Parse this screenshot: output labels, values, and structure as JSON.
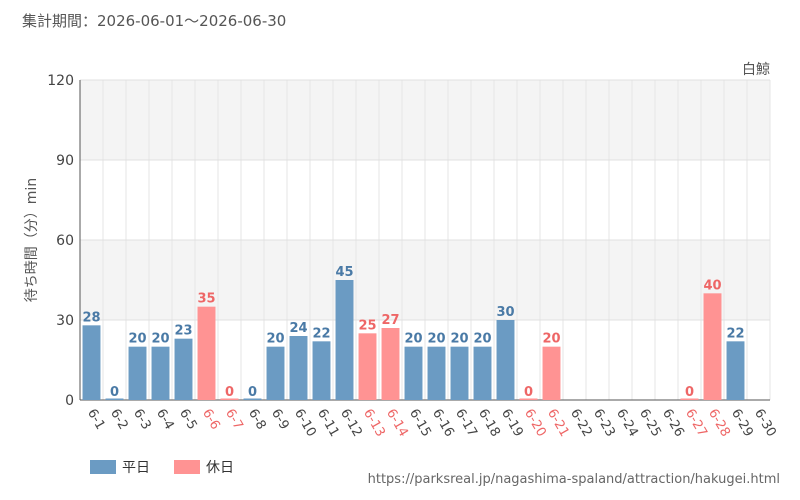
{
  "header": {
    "period": "集計期間：2026-06-01～2026-06-30"
  },
  "footer": {
    "url": "https://parksreal.jp/nagashima-spaland/attraction/hakugei.html"
  },
  "colors": {
    "weekday": "#6b9bc3",
    "holiday": "#ff9393",
    "weekday_text": "#4a7aa6",
    "holiday_text": "#ee6666",
    "grid": "#e6e6e6",
    "band": "#f4f4f4"
  },
  "chart_data": {
    "type": "bar",
    "title": "白鯨",
    "ylabel": "待ち時間（分）min",
    "xlabel": "",
    "ylim": [
      0,
      120
    ],
    "yticks": [
      0,
      30,
      60,
      90,
      120
    ],
    "grid": true,
    "legend_position": "bottom-left",
    "legend": [
      {
        "key": "weekday",
        "label": "平日"
      },
      {
        "key": "holiday",
        "label": "休日"
      }
    ],
    "categories": [
      "6-1",
      "6-2",
      "6-3",
      "6-4",
      "6-5",
      "6-6",
      "6-7",
      "6-8",
      "6-9",
      "6-10",
      "6-11",
      "6-12",
      "6-13",
      "6-14",
      "6-15",
      "6-16",
      "6-17",
      "6-18",
      "6-19",
      "6-20",
      "6-21",
      "6-22",
      "6-23",
      "6-24",
      "6-25",
      "6-26",
      "6-27",
      "6-28",
      "6-29",
      "6-30"
    ],
    "values": [
      28,
      0,
      20,
      20,
      23,
      35,
      0,
      0,
      20,
      24,
      22,
      45,
      25,
      27,
      20,
      20,
      20,
      20,
      30,
      0,
      20,
      null,
      null,
      null,
      null,
      null,
      0,
      40,
      22,
      null
    ],
    "day_type": [
      "weekday",
      "weekday",
      "weekday",
      "weekday",
      "weekday",
      "holiday",
      "holiday",
      "weekday",
      "weekday",
      "weekday",
      "weekday",
      "weekday",
      "holiday",
      "holiday",
      "weekday",
      "weekday",
      "weekday",
      "weekday",
      "weekday",
      "holiday",
      "holiday",
      "weekday",
      "weekday",
      "weekday",
      "weekday",
      "weekday",
      "holiday",
      "holiday",
      "weekday",
      "weekday"
    ]
  }
}
